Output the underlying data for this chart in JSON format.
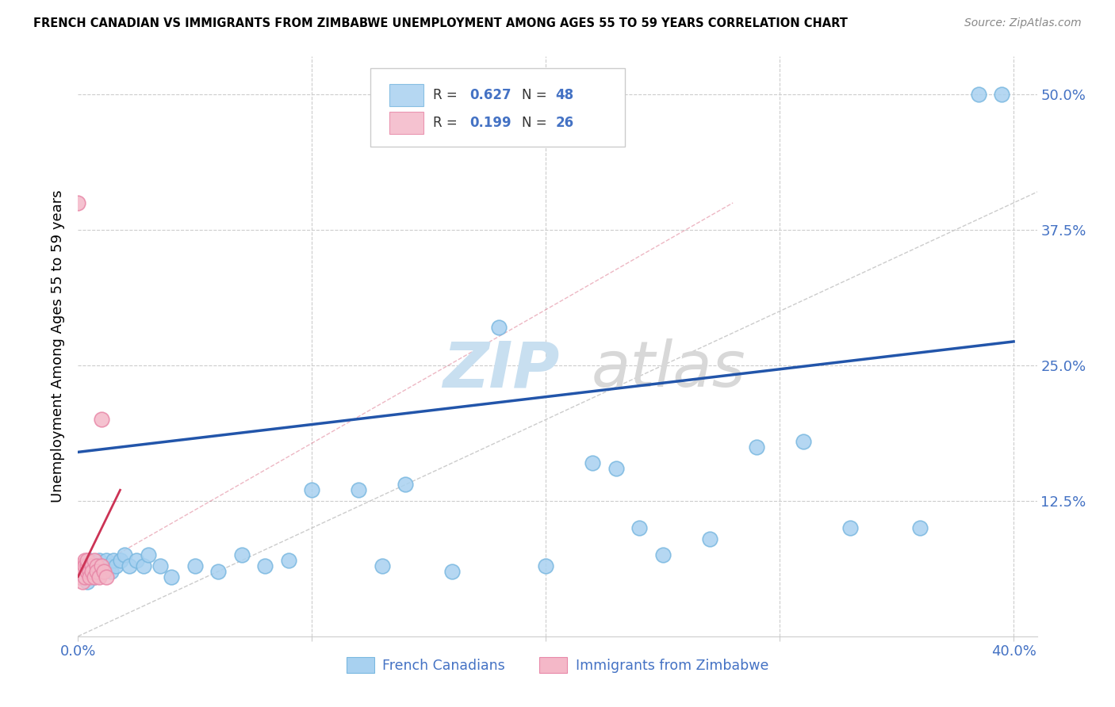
{
  "title": "FRENCH CANADIAN VS IMMIGRANTS FROM ZIMBABWE UNEMPLOYMENT AMONG AGES 55 TO 59 YEARS CORRELATION CHART",
  "source": "Source: ZipAtlas.com",
  "ylabel_label": "Unemployment Among Ages 55 to 59 years",
  "legend_label1": "French Canadians",
  "legend_label2": "Immigrants from Zimbabwe",
  "blue_color": "#a8d1f0",
  "pink_color": "#f4b8c8",
  "blue_edge": "#7ab8e0",
  "pink_edge": "#e888a8",
  "line_blue": "#2255aa",
  "line_pink": "#cc3355",
  "grid_color": "#cccccc",
  "text_color": "#4472c4",
  "watermark_zip_color": "#c8dff0",
  "watermark_atlas_color": "#d8d8d8",
  "blue_line_x0": 0.0,
  "blue_line_y0": 0.17,
  "blue_line_x1": 0.4,
  "blue_line_y1": 0.272,
  "pink_line_x0": 0.0,
  "pink_line_y0": 0.055,
  "pink_line_x1": 0.018,
  "pink_line_y1": 0.135,
  "diag_line_color": "#cccccc",
  "xlim": [
    0.0,
    0.41
  ],
  "ylim": [
    0.0,
    0.535
  ],
  "xtick_positions": [
    0.0,
    0.1,
    0.2,
    0.3,
    0.4
  ],
  "xtick_labels": [
    "0.0%",
    "",
    "",
    "",
    "40.0%"
  ],
  "ytick_positions": [
    0.0,
    0.125,
    0.25,
    0.375,
    0.5
  ],
  "ytick_labels": [
    "",
    "12.5%",
    "25.0%",
    "37.5%",
    "50.0%"
  ],
  "blue_x": [
    0.002,
    0.003,
    0.004,
    0.005,
    0.005,
    0.006,
    0.007,
    0.007,
    0.008,
    0.009,
    0.01,
    0.01,
    0.012,
    0.013,
    0.014,
    0.015,
    0.016,
    0.018,
    0.02,
    0.022,
    0.025,
    0.028,
    0.03,
    0.035,
    0.04,
    0.05,
    0.06,
    0.07,
    0.08,
    0.09,
    0.1,
    0.12,
    0.13,
    0.14,
    0.16,
    0.18,
    0.2,
    0.22,
    0.23,
    0.24,
    0.25,
    0.27,
    0.29,
    0.31,
    0.33,
    0.36,
    0.385,
    0.395
  ],
  "blue_y": [
    0.055,
    0.06,
    0.05,
    0.065,
    0.07,
    0.06,
    0.055,
    0.065,
    0.06,
    0.07,
    0.06,
    0.065,
    0.07,
    0.065,
    0.06,
    0.07,
    0.065,
    0.07,
    0.075,
    0.065,
    0.07,
    0.065,
    0.075,
    0.065,
    0.055,
    0.065,
    0.06,
    0.075,
    0.065,
    0.07,
    0.135,
    0.135,
    0.065,
    0.14,
    0.06,
    0.285,
    0.065,
    0.16,
    0.155,
    0.1,
    0.075,
    0.09,
    0.175,
    0.18,
    0.1,
    0.1,
    0.5,
    0.5
  ],
  "pink_x": [
    0.0,
    0.0,
    0.001,
    0.001,
    0.002,
    0.002,
    0.002,
    0.003,
    0.003,
    0.003,
    0.004,
    0.004,
    0.004,
    0.005,
    0.005,
    0.006,
    0.006,
    0.007,
    0.007,
    0.008,
    0.008,
    0.009,
    0.01,
    0.01,
    0.011,
    0.012
  ],
  "pink_y": [
    0.4,
    0.055,
    0.065,
    0.055,
    0.065,
    0.06,
    0.05,
    0.07,
    0.065,
    0.055,
    0.065,
    0.06,
    0.07,
    0.06,
    0.055,
    0.065,
    0.06,
    0.07,
    0.055,
    0.065,
    0.06,
    0.055,
    0.2,
    0.065,
    0.06,
    0.055
  ]
}
